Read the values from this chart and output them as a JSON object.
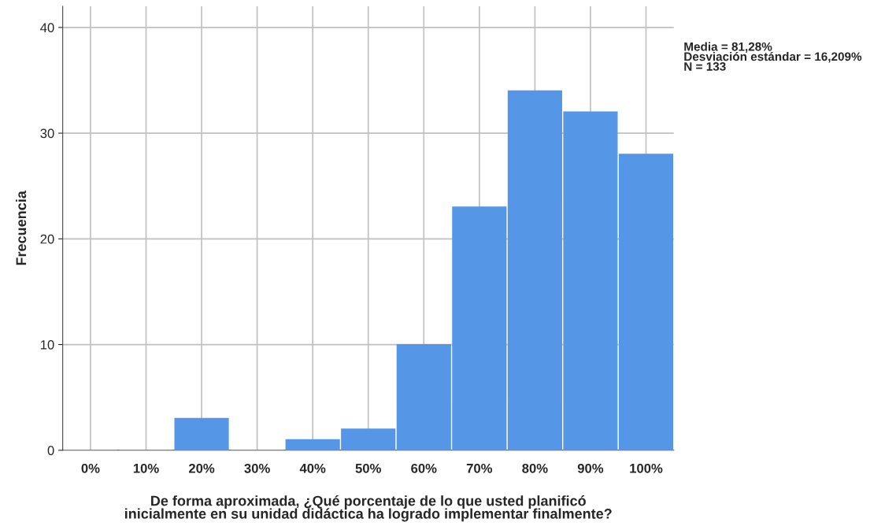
{
  "chart_data": {
    "type": "bar",
    "categories": [
      "0%",
      "10%",
      "20%",
      "30%",
      "40%",
      "50%",
      "60%",
      "70%",
      "80%",
      "90%",
      "100%"
    ],
    "values": [
      0,
      0,
      3,
      0,
      1,
      2,
      10,
      23,
      34,
      32,
      28
    ],
    "color": "#5596e6",
    "xlabel": "De forma aproximada, ¿Qué porcentaje de lo que usted planificó\ninicialmente en su unidad didáctica ha logrado implementar finalmente?",
    "ylabel": "Frecuencia",
    "ylim": [
      0,
      42
    ],
    "yticks": [
      0,
      10,
      20,
      30,
      40
    ],
    "grid": true,
    "annotations": [
      "Media = 81,28%\nDesviación estándar = 16,209%\nN = 133"
    ]
  }
}
